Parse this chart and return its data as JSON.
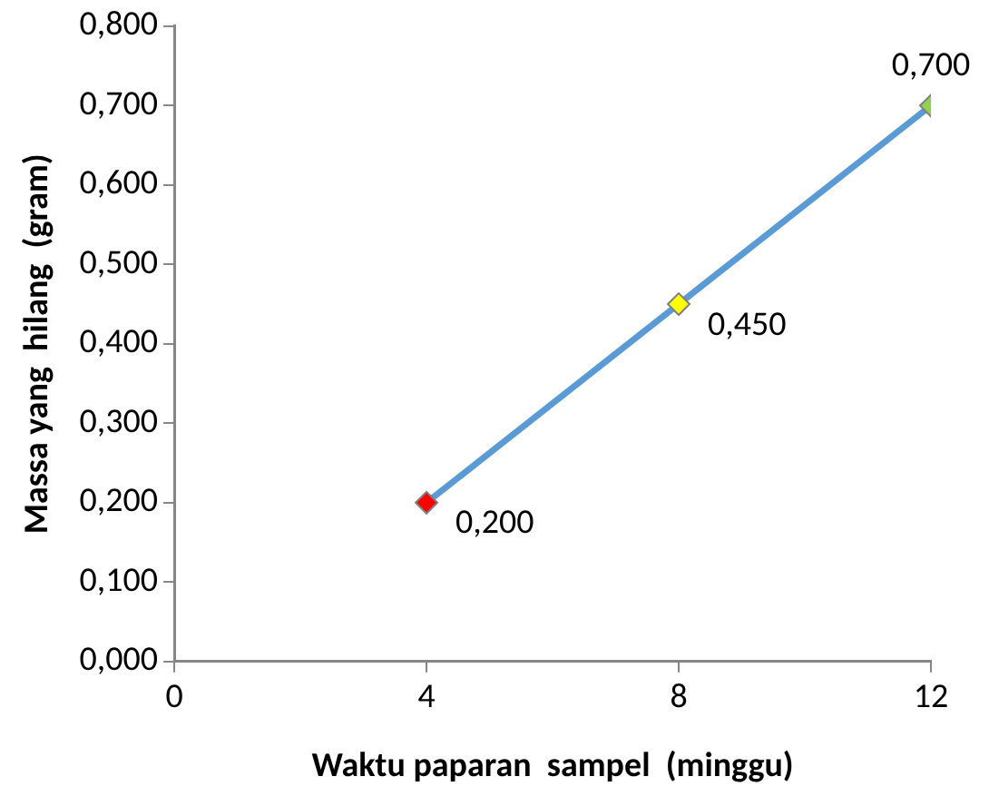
{
  "chart_data": {
    "type": "line",
    "xlabel": "Waktu paparan  sampel  (minggu)",
    "ylabel": "Massa yang  hilang  (gram)",
    "x": [
      4,
      8,
      12
    ],
    "series": [
      {
        "color": "#5b9bd5",
        "colors": [
          "#ff0000",
          "#ffff00",
          "#92d050"
        ],
        "values": [
          0.2,
          0.45,
          0.7
        ],
        "value_labels": [
          "0,200",
          "0,450",
          "0,700"
        ]
      }
    ],
    "xlim": [
      0,
      12
    ],
    "xticks": [
      0,
      4,
      8,
      12
    ],
    "ylim": [
      0,
      0.8
    ],
    "yticks": [
      {
        "value": 0,
        "label": "0,000"
      },
      {
        "value": 0.1,
        "label": "0,100"
      },
      {
        "value": 0.2,
        "label": "0,200"
      },
      {
        "value": 0.3,
        "label": "0,300"
      },
      {
        "value": 0.4,
        "label": "0,400"
      },
      {
        "value": 0.5,
        "label": "0,500"
      },
      {
        "value": 0.6,
        "label": "0,600"
      },
      {
        "value": 0.7,
        "label": "0,700"
      },
      {
        "value": 0.8,
        "label": "0,800"
      }
    ],
    "grid": false,
    "legend": false,
    "marker": "diamond",
    "line_style": "solid"
  }
}
